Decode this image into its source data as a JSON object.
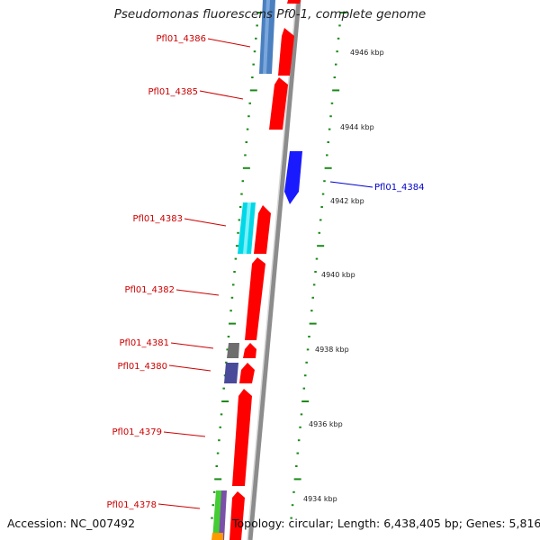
{
  "title": "Pseudomonas fluorescens Pf0-1, complete genome",
  "footer": {
    "accession": "Accession: NC_007492",
    "summary": "Topology: circular; Length: 6,438,405 bp; Genes: 5,816"
  },
  "colors": {
    "forward_gene": "#ff0000",
    "reverse_gene": "#1a1aff",
    "backbone": "#8c8c8c",
    "tick": "#1a8a1a",
    "label_forward": "#cc0000",
    "label_reverse": "#0000cc"
  },
  "kbp_labels": [
    "4946 kbp",
    "4944 kbp",
    "4942 kbp",
    "4940 kbp",
    "4938 kbp",
    "4936 kbp",
    "4934 kbp"
  ],
  "genes_left": [
    {
      "label": "Pfl01_4386"
    },
    {
      "label": "Pfl01_4385"
    },
    {
      "label": "Pfl01_4383"
    },
    {
      "label": "Pfl01_4382"
    },
    {
      "label": "Pfl01_4381"
    },
    {
      "label": "Pfl01_4380"
    },
    {
      "label": "Pfl01_4379"
    },
    {
      "label": "Pfl01_4378"
    }
  ],
  "genes_right": [
    {
      "label": "Pfl01_4384"
    }
  ]
}
